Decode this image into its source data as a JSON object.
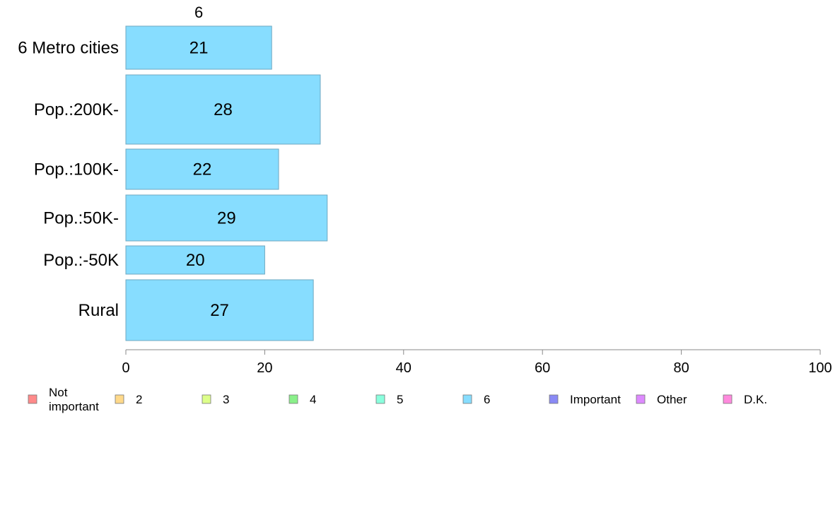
{
  "chart_data": {
    "type": "bar",
    "orientation": "horizontal",
    "series_label_above": "6",
    "categories": [
      "6 Metro cities",
      "Pop.:200K-",
      "Pop.:100K-",
      "Pop.:50K-",
      "Pop.:-50K",
      "Rural"
    ],
    "series": [
      {
        "name": "6",
        "values": [
          21,
          28,
          22,
          29,
          20,
          27
        ]
      }
    ],
    "bar_color": "#87DDFF",
    "xlim": [
      0,
      100
    ],
    "x_ticks": [
      0,
      20,
      40,
      60,
      80,
      100
    ],
    "grid": false,
    "legend_position": "bottom",
    "legend": [
      {
        "label": "Not\nimportant",
        "color": "#FF8A8A"
      },
      {
        "label": "2",
        "color": "#FFD98A"
      },
      {
        "label": "3",
        "color": "#DDFF8A"
      },
      {
        "label": "4",
        "color": "#8AF08A"
      },
      {
        "label": "5",
        "color": "#8AFFDD"
      },
      {
        "label": "6",
        "color": "#87DDFF"
      },
      {
        "label": "Important",
        "color": "#8A8AF5"
      },
      {
        "label": "Other",
        "color": "#DD8AFF"
      },
      {
        "label": "D.K.",
        "color": "#FF8ADD"
      }
    ]
  }
}
